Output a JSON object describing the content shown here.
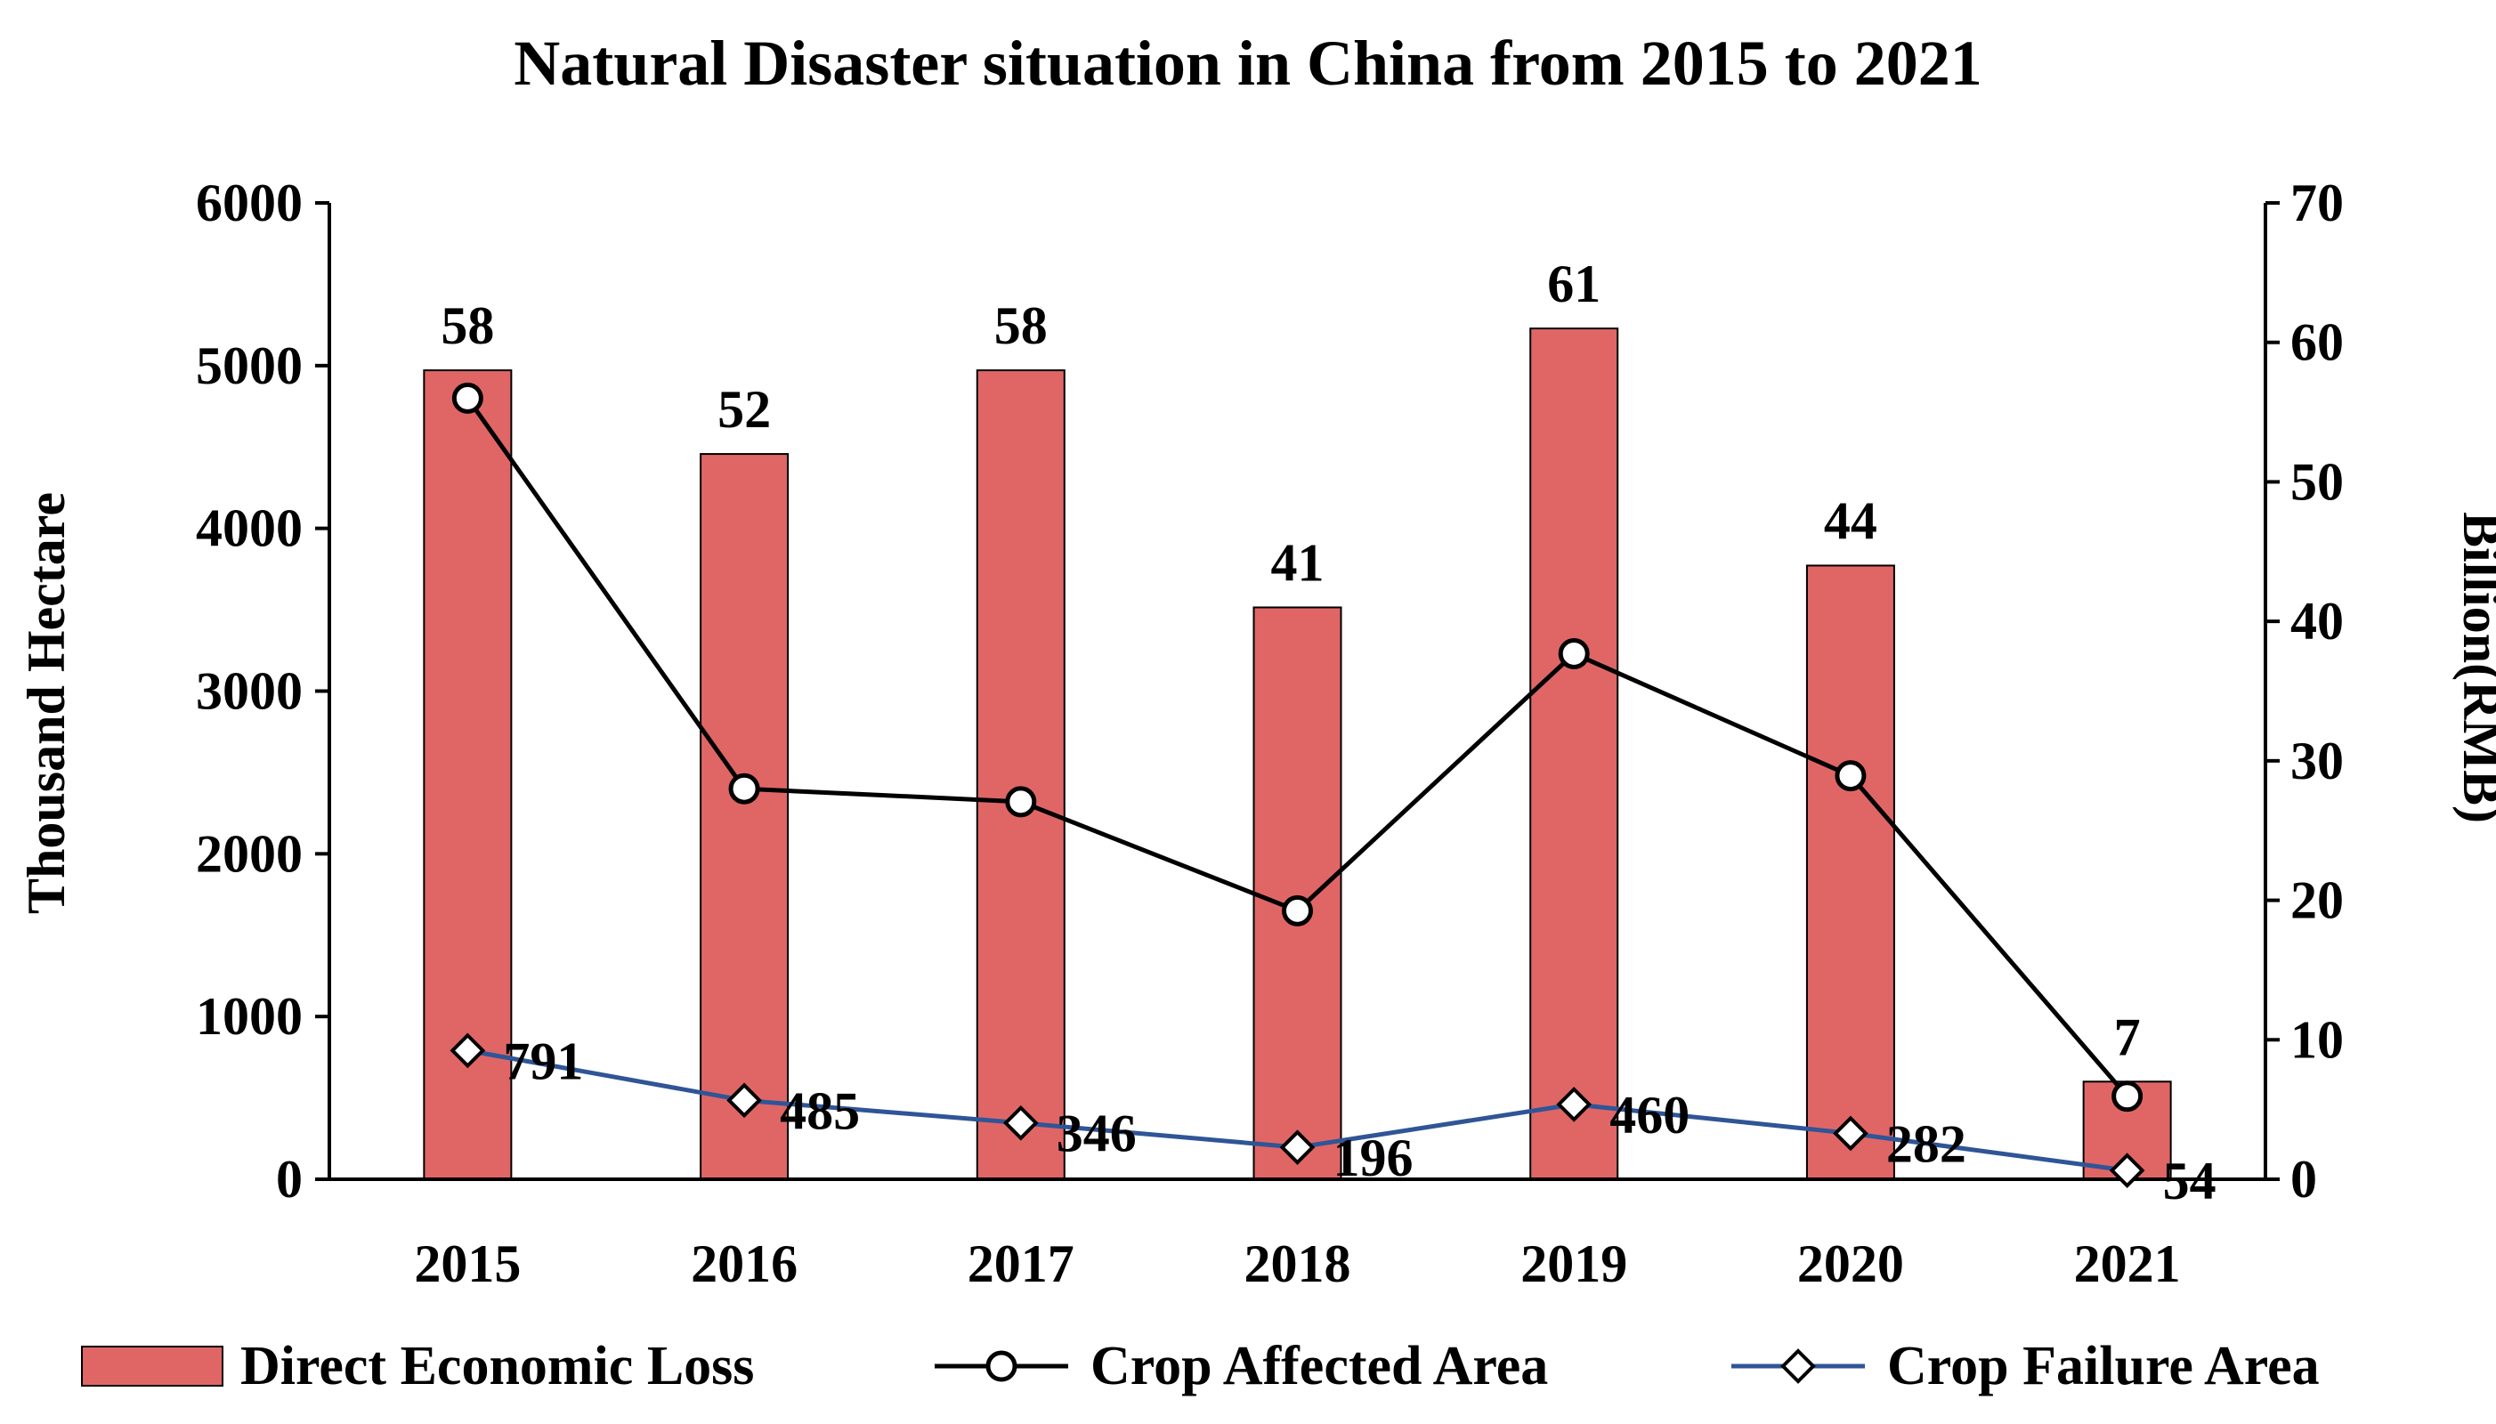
{
  "chart_data": {
    "type": "bar+line",
    "title": "Natural Disaster situation in China from 2015 to 2021",
    "categories": [
      "2015",
      "2016",
      "2017",
      "2018",
      "2019",
      "2020",
      "2021"
    ],
    "left_axis": {
      "label": "Thousand Hectare",
      "range": [
        0,
        6000
      ],
      "ticks": [
        "0",
        "1000",
        "2000",
        "3000",
        "4000",
        "5000",
        "6000"
      ]
    },
    "right_axis": {
      "label": "Billion(RMB)",
      "range": [
        0,
        70
      ],
      "ticks": [
        "0",
        "10",
        "20",
        "30",
        "40",
        "50",
        "60",
        "70"
      ]
    },
    "series": [
      {
        "name": "Direct Economic Loss",
        "kind": "bar",
        "axis": "right",
        "color": "#E06666",
        "values": [
          58,
          52,
          58,
          41,
          61,
          44,
          7
        ],
        "labels": [
          "58",
          "52",
          "58",
          "41",
          "61",
          "44",
          "7"
        ]
      },
      {
        "name": "Crop Affected Area",
        "kind": "line",
        "axis": "left",
        "marker": "circle",
        "color": "#000000",
        "values": [
          4800,
          2400,
          2320,
          1650,
          3230,
          2480,
          510
        ]
      },
      {
        "name": "Crop Failure Area",
        "kind": "line",
        "axis": "left",
        "marker": "diamond",
        "color": "#2F5597",
        "values": [
          791,
          485,
          346,
          196,
          460,
          282,
          54
        ],
        "labels": [
          "791",
          "485",
          "346",
          "196",
          "460",
          "282",
          "54"
        ]
      }
    ],
    "legend": {
      "position": "bottom",
      "items": [
        "Direct Economic Loss",
        "Crop Affected Area",
        "Crop Failure Area"
      ]
    }
  }
}
